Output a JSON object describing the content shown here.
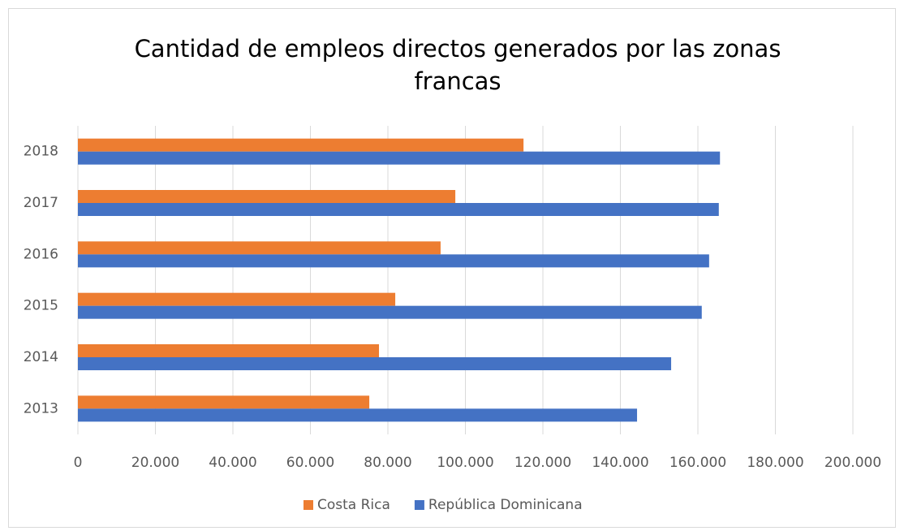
{
  "chart_data": {
    "type": "bar",
    "orientation": "horizontal",
    "title": [
      "Cantidad de empleos directos generados por las zonas",
      "francas"
    ],
    "categories": [
      "2013",
      "2014",
      "2015",
      "2016",
      "2017",
      "2018"
    ],
    "series": [
      {
        "name": "Costa Rica",
        "color": "#ed7d31",
        "values": [
          75200,
          77700,
          81900,
          93600,
          97400,
          115000
        ]
      },
      {
        "name": "República Dominicana",
        "color": "#4472c4",
        "values": [
          144300,
          153100,
          161000,
          162900,
          165400,
          165700
        ]
      }
    ],
    "xlim": [
      0,
      200000
    ],
    "xticks": [
      0,
      {
        "value": 20000,
        "label": "20.000"
      },
      {
        "value": 40000,
        "label": "40.000"
      },
      {
        "value": 60000,
        "label": "60.000"
      },
      {
        "value": 80000,
        "label": "80.000"
      },
      {
        "value": 100000,
        "label": "100.000"
      },
      {
        "value": 120000,
        "label": "120.000"
      },
      {
        "value": 140000,
        "label": "140.000"
      },
      {
        "value": 160000,
        "label": "160.000"
      },
      {
        "value": 180000,
        "label": "180.000"
      },
      {
        "value": 200000,
        "label": "200.000"
      }
    ],
    "grid": true,
    "legend": "bottom"
  }
}
